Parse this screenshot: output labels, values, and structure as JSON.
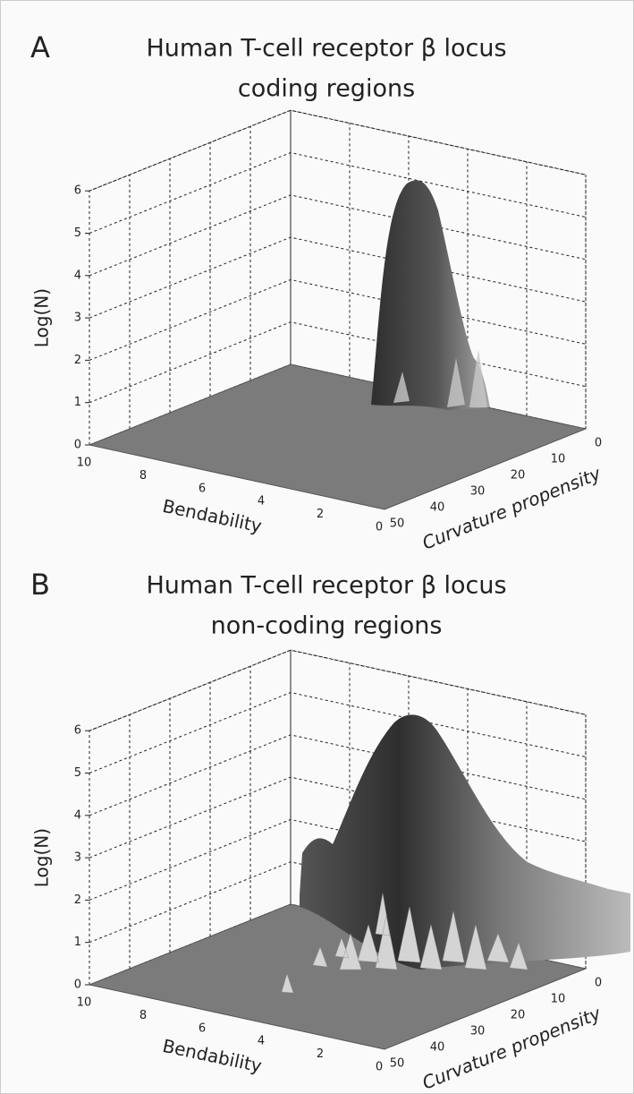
{
  "chart_data": [
    {
      "type": "surface3d",
      "panel": "A",
      "title": [
        "Human T-cell receptor β locus",
        "coding regions"
      ],
      "zlabel": "Log(N)",
      "xlabel": "Bendability",
      "ylabel": "Curvature propensity",
      "xlim": [
        10,
        0
      ],
      "xticks": [
        10,
        8,
        6,
        4,
        2,
        0
      ],
      "ylim": [
        50,
        0
      ],
      "yticks": [
        50,
        40,
        30,
        20,
        10,
        0
      ],
      "zlim": [
        0,
        6
      ],
      "zticks": [
        0,
        1,
        2,
        3,
        4,
        5,
        6
      ],
      "grid": true
    },
    {
      "type": "surface3d",
      "panel": "B",
      "title": [
        "Human T-cell receptor β locus",
        "non-coding regions"
      ],
      "zlabel": "Log(N)",
      "xlabel": "Bendability",
      "ylabel": "Curvature propensity",
      "xlim": [
        10,
        0
      ],
      "xticks": [
        10,
        8,
        6,
        4,
        2,
        0
      ],
      "ylim": [
        50,
        0
      ],
      "yticks": [
        50,
        40,
        30,
        20,
        10,
        0
      ],
      "zlim": [
        0,
        6
      ],
      "zticks": [
        0,
        1,
        2,
        3,
        4,
        5,
        6
      ],
      "grid": true
    }
  ]
}
